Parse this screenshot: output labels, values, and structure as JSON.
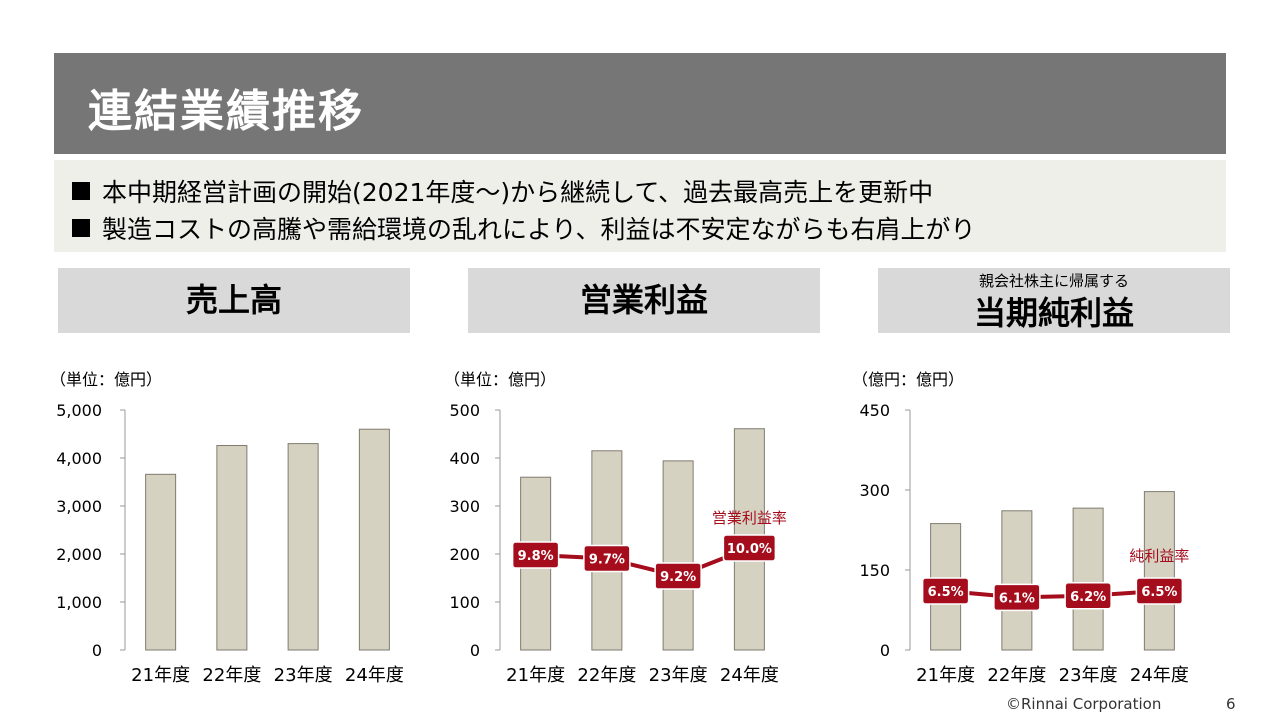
{
  "title": "連結業績推移",
  "bullets": [
    "本中期経営計画の開始(2021年度～)から継続して、過去最高売上を更新中",
    "製造コストの高騰や需給環境の乱れにより、利益は不安定ながらも右肩上がり"
  ],
  "panels": {
    "sales": {
      "title": "売上高",
      "unit": "（単位：億円）"
    },
    "op": {
      "title": "営業利益",
      "unit": "（単位：億円）"
    },
    "net": {
      "subtitle": "親会社株主に帰属する",
      "title": "当期純利益",
      "unit": "（億円：億円）"
    }
  },
  "chart_data": [
    {
      "type": "bar",
      "title": "売上高",
      "categories": [
        "21年度",
        "22年度",
        "23年度",
        "24年度"
      ],
      "values": [
        3660,
        4260,
        4300,
        4600
      ],
      "ylim": [
        0,
        5000
      ],
      "yticks": [
        "0",
        "1,000",
        "2,000",
        "3,000",
        "4,000",
        "5,000"
      ],
      "ytick_values": [
        0,
        1000,
        2000,
        3000,
        4000,
        5000
      ],
      "grid": false,
      "bar_color": "#d6d2c2"
    },
    {
      "type": "bar",
      "title": "営業利益",
      "categories": [
        "21年度",
        "22年度",
        "23年度",
        "24年度"
      ],
      "values": [
        360,
        415,
        394,
        461
      ],
      "ylim": [
        0,
        500
      ],
      "yticks": [
        "0",
        "100",
        "200",
        "300",
        "400",
        "500"
      ],
      "ytick_values": [
        0,
        100,
        200,
        300,
        400,
        500
      ],
      "grid": false,
      "bar_color": "#d6d2c2",
      "rate_series": {
        "name": "営業利益率",
        "labels": [
          "9.8%",
          "9.7%",
          "9.2%",
          "10.0%"
        ],
        "values": [
          9.8,
          9.7,
          9.2,
          10.0
        ],
        "color": "#a50d1d"
      }
    },
    {
      "type": "bar",
      "title": "当期純利益",
      "categories": [
        "21年度",
        "22年度",
        "23年度",
        "24年度"
      ],
      "values": [
        237,
        261,
        266,
        297
      ],
      "ylim": [
        0,
        450
      ],
      "yticks": [
        "0",
        "150",
        "300",
        "450"
      ],
      "ytick_values": [
        0,
        150,
        300,
        450
      ],
      "grid": false,
      "bar_color": "#d6d2c2",
      "rate_series": {
        "name": "純利益率",
        "labels": [
          "6.5%",
          "6.1%",
          "6.2%",
          "6.5%"
        ],
        "values": [
          6.5,
          6.1,
          6.2,
          6.5
        ],
        "color": "#a50d1d"
      }
    }
  ],
  "footer": {
    "copyright": "©Rinnai Corporation",
    "page": "6"
  }
}
